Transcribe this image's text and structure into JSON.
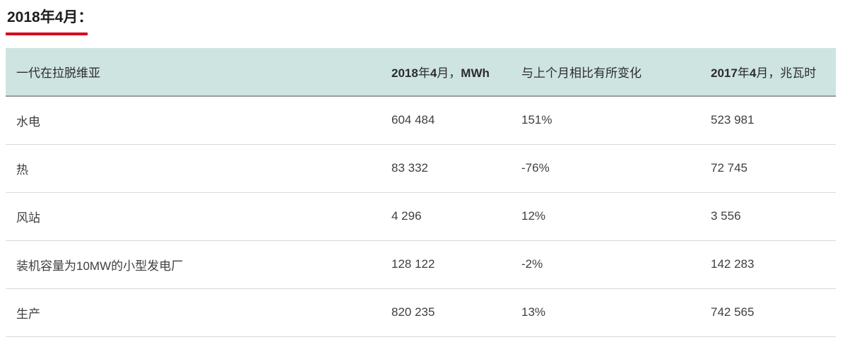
{
  "page": {
    "title": "2018年4月：",
    "accent_color": "#d6001c"
  },
  "table": {
    "header": {
      "col1": "一代在拉脱维亚",
      "col2_parts": [
        "2018",
        "年",
        "4",
        "月，",
        "MWh"
      ],
      "col3": "与上个月相比有所变化",
      "col4_parts": [
        "2017",
        "年",
        "4",
        "月，兆瓦时"
      ]
    },
    "rows": [
      {
        "name": "水电",
        "mwh_2018": "604 484",
        "change": "151%",
        "mwh_2017": "523 981"
      },
      {
        "name": "热",
        "mwh_2018": "83 332",
        "change": "-76%",
        "mwh_2017": "72 745"
      },
      {
        "name": "风站",
        "mwh_2018": "4 296",
        "change": "12%",
        "mwh_2017": "3 556"
      },
      {
        "name": "装机容量为10MW的小型发电厂",
        "mwh_2018": "128 122",
        "change": "-2%",
        "mwh_2017": "142 283"
      },
      {
        "name": "生产",
        "mwh_2018": "820 235",
        "change": "13%",
        "mwh_2017": "742 565"
      }
    ]
  },
  "chart_data": {
    "type": "table",
    "title": "2018年4月：",
    "columns": [
      "一代在拉脱维亚",
      "2018年4月，MWh",
      "与上个月相比有所变化",
      "2017年4月，兆瓦时"
    ],
    "rows": [
      [
        "水电",
        604484,
        "151%",
        523981
      ],
      [
        "热",
        83332,
        "-76%",
        72745
      ],
      [
        "风站",
        4296,
        "12%",
        3556
      ],
      [
        "装机容量为10MW的小型发电厂",
        128122,
        "-2%",
        142283
      ],
      [
        "生产",
        820235,
        "13%",
        742565
      ]
    ],
    "layout_hints": {
      "header_background": "#cee4e1",
      "header_border_bottom": "#9b9b9b",
      "row_border": "#d9d9d9",
      "title_underline_color": "#d6001c"
    }
  }
}
